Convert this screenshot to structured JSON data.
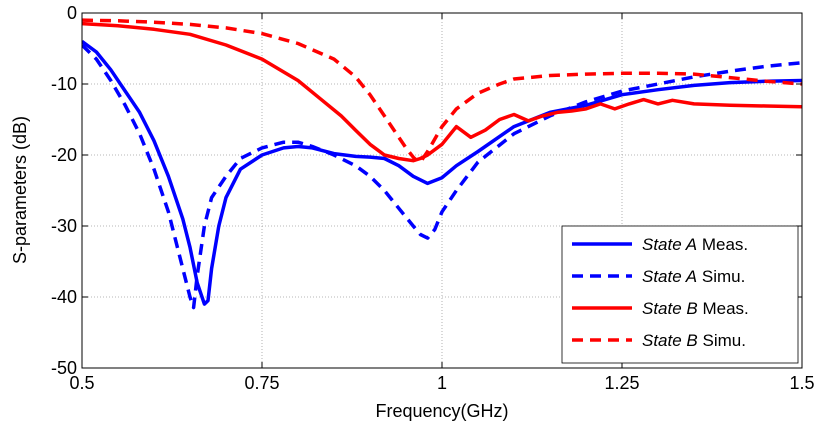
{
  "chart_data": {
    "type": "line",
    "title": "",
    "xlabel": "Frequency(GHz)",
    "ylabel": "S-parameters (dB)",
    "xlim": [
      0.5,
      1.5
    ],
    "ylim": [
      -50,
      0
    ],
    "xticks": [
      0.5,
      0.75,
      1,
      1.25,
      1.5
    ],
    "xtick_labels": [
      "0.5",
      "0.75",
      "1",
      "1.25",
      "1.5"
    ],
    "yticks": [
      0,
      -10,
      -20,
      -30,
      -40,
      -50
    ],
    "ytick_labels": [
      "0",
      "-10",
      "-20",
      "-30",
      "-40",
      "-50"
    ],
    "grid": true,
    "legend_position": "bottom-right",
    "series": [
      {
        "name": "State A Meas.",
        "name_italic": "State A",
        "name_rest": " Meas.",
        "color": "#0000ff",
        "dash": "solid",
        "x": [
          0.5,
          0.52,
          0.54,
          0.56,
          0.58,
          0.6,
          0.62,
          0.64,
          0.65,
          0.66,
          0.67,
          0.675,
          0.68,
          0.69,
          0.7,
          0.72,
          0.75,
          0.78,
          0.8,
          0.82,
          0.85,
          0.88,
          0.9,
          0.92,
          0.94,
          0.96,
          0.98,
          1.0,
          1.02,
          1.05,
          1.1,
          1.15,
          1.2,
          1.25,
          1.3,
          1.35,
          1.4,
          1.45,
          1.5
        ],
        "y": [
          -4,
          -5.5,
          -8,
          -11,
          -14,
          -18,
          -23,
          -29,
          -33,
          -38,
          -41,
          -40.5,
          -36,
          -30,
          -26,
          -22,
          -20,
          -19,
          -18.8,
          -19,
          -19.8,
          -20.2,
          -20.3,
          -20.5,
          -21.5,
          -23,
          -24,
          -23.2,
          -21.5,
          -19.5,
          -16,
          -14,
          -13,
          -11.5,
          -10.8,
          -10.2,
          -9.8,
          -9.6,
          -9.5
        ]
      },
      {
        "name": "State A Simu.",
        "name_italic": "State A",
        "name_rest": " Simu.",
        "color": "#0000ff",
        "dash": "dashed",
        "x": [
          0.5,
          0.52,
          0.54,
          0.56,
          0.58,
          0.6,
          0.62,
          0.63,
          0.64,
          0.65,
          0.655,
          0.66,
          0.67,
          0.68,
          0.7,
          0.72,
          0.75,
          0.78,
          0.8,
          0.82,
          0.85,
          0.88,
          0.9,
          0.92,
          0.94,
          0.96,
          0.97,
          0.98,
          0.99,
          1.0,
          1.02,
          1.05,
          1.1,
          1.15,
          1.2,
          1.25,
          1.3,
          1.35,
          1.4,
          1.45,
          1.5
        ],
        "y": [
          -4.5,
          -6.5,
          -9.5,
          -13,
          -17,
          -22,
          -28,
          -32,
          -36,
          -40,
          -41.5,
          -37,
          -30,
          -26,
          -23,
          -20.5,
          -19,
          -18.2,
          -18.2,
          -18.8,
          -20,
          -21.5,
          -23,
          -25,
          -27.5,
          -30,
          -31.2,
          -31.7,
          -30.5,
          -28,
          -25,
          -21,
          -17,
          -14.5,
          -12.5,
          -11,
          -10,
          -9,
          -8.2,
          -7.5,
          -7
        ]
      },
      {
        "name": "State B Meas.",
        "name_italic": "State B",
        "name_rest": " Meas.",
        "color": "#ff0000",
        "dash": "solid",
        "x": [
          0.5,
          0.55,
          0.6,
          0.65,
          0.7,
          0.75,
          0.8,
          0.83,
          0.86,
          0.88,
          0.9,
          0.92,
          0.94,
          0.96,
          0.97,
          0.98,
          1.0,
          1.02,
          1.04,
          1.06,
          1.08,
          1.1,
          1.12,
          1.14,
          1.16,
          1.18,
          1.2,
          1.22,
          1.24,
          1.26,
          1.28,
          1.3,
          1.32,
          1.35,
          1.4,
          1.45,
          1.5
        ],
        "y": [
          -1.5,
          -1.8,
          -2.3,
          -3,
          -4.5,
          -6.5,
          -9.5,
          -12,
          -14.5,
          -16.5,
          -18.5,
          -20,
          -20.5,
          -20.8,
          -20.5,
          -20,
          -18.5,
          -16,
          -17.5,
          -16.5,
          -15,
          -14.3,
          -15.2,
          -14.5,
          -14,
          -13.8,
          -13.5,
          -12.8,
          -13.5,
          -12.8,
          -12.2,
          -12.8,
          -12.3,
          -12.8,
          -13,
          -13.1,
          -13.2
        ]
      },
      {
        "name": "State B Simu.",
        "name_italic": "State B",
        "name_rest": " Simu.",
        "color": "#ff0000",
        "dash": "dashed",
        "x": [
          0.5,
          0.55,
          0.6,
          0.65,
          0.7,
          0.75,
          0.8,
          0.85,
          0.88,
          0.9,
          0.92,
          0.94,
          0.95,
          0.96,
          0.965,
          0.97,
          0.98,
          1.0,
          1.02,
          1.05,
          1.08,
          1.1,
          1.15,
          1.2,
          1.25,
          1.3,
          1.35,
          1.4,
          1.45,
          1.5
        ],
        "y": [
          -1,
          -1.1,
          -1.3,
          -1.6,
          -2.1,
          -2.9,
          -4.3,
          -6.5,
          -9,
          -11.5,
          -14.5,
          -17.5,
          -19,
          -20.3,
          -20.8,
          -21,
          -19.5,
          -16,
          -13.5,
          -11.3,
          -10,
          -9.3,
          -8.8,
          -8.6,
          -8.5,
          -8.5,
          -8.6,
          -9.1,
          -9.6,
          -10
        ]
      }
    ]
  }
}
